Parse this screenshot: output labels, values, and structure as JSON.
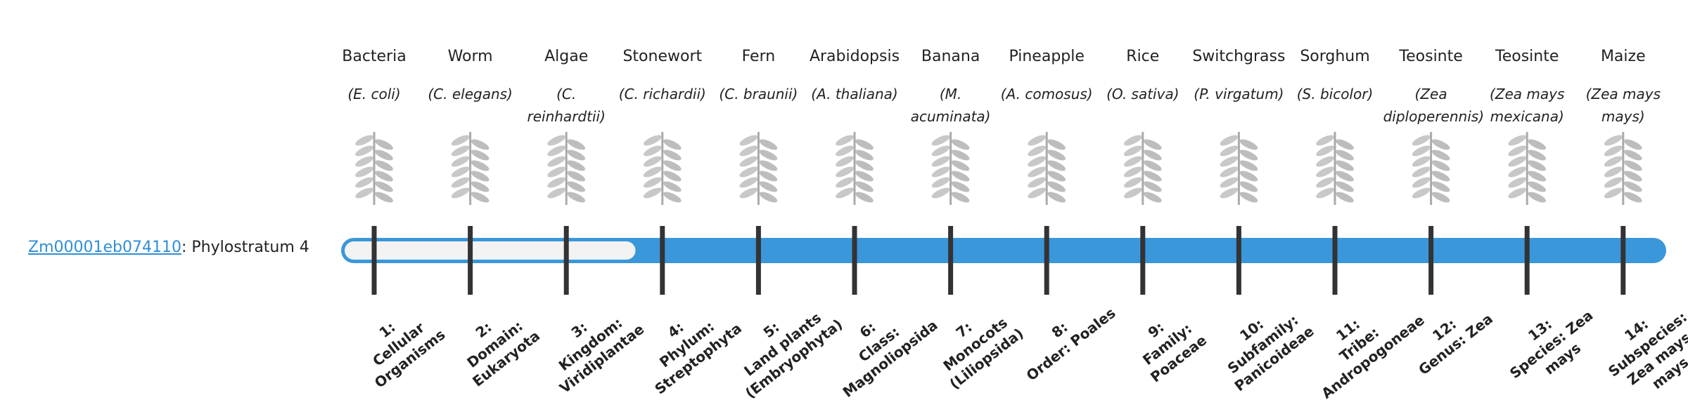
{
  "gene": {
    "id": "Zm00001eb074110",
    "label": ": Phylostratum 4",
    "phylostratum": 4
  },
  "organisms": [
    {
      "name": "Bacteria",
      "species": "(E. coli)"
    },
    {
      "name": "Worm",
      "species": "(C. elegans)"
    },
    {
      "name": "Algae",
      "species": "(C. reinhardtii)"
    },
    {
      "name": "Stonewort",
      "species": "(C. richardii)"
    },
    {
      "name": "Fern",
      "species": "(C. braunii)"
    },
    {
      "name": "Arabidopsis",
      "species": "(A. thaliana)"
    },
    {
      "name": "Banana",
      "species": "(M. acuminata)"
    },
    {
      "name": "Pineapple",
      "species": "(A. comosus)"
    },
    {
      "name": "Rice",
      "species": "(O. sativa)"
    },
    {
      "name": "Switchgrass",
      "species": "(P. virgatum)"
    },
    {
      "name": "Sorghum",
      "species": "(S. bicolor)"
    },
    {
      "name": "Teosinte",
      "species": "(Zea diploperennis)"
    },
    {
      "name": "Teosinte",
      "species": "(Zea mays mexicana)"
    },
    {
      "name": "Maize",
      "species": "(Zea mays mays)"
    }
  ],
  "strata": [
    {
      "number": "1:",
      "label": "Cellular Organisms"
    },
    {
      "number": "2:",
      "label": "Domain: Eukaryota"
    },
    {
      "number": "3:",
      "label": "Kingdom: Viridiplantae"
    },
    {
      "number": "4:",
      "label": "Phylum: Streptophyta"
    },
    {
      "number": "5:",
      "label": "Land plants (Embryophyta)"
    },
    {
      "number": "6:",
      "label": "Class: Magnoliopsida"
    },
    {
      "number": "7:",
      "label": "Monocots (Liliopsida)"
    },
    {
      "number": "8:",
      "label": "Order: Poales"
    },
    {
      "number": "9:",
      "label": "Family: Poaceae"
    },
    {
      "number": "10:",
      "label": "Subfamily: Panicoideae"
    },
    {
      "number": "11:",
      "label": "Tribe: Andropogoneae"
    },
    {
      "number": "12:",
      "label": "Genus: Zea"
    },
    {
      "number": "13:",
      "label": "Species: Zea mays"
    },
    {
      "number": "14:",
      "label": "Subspecies: Zea mays mays"
    }
  ]
}
